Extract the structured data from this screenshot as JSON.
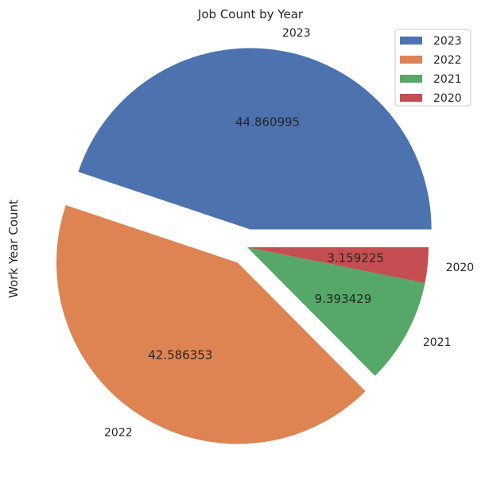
{
  "chart_data": {
    "type": "pie",
    "title": "Job Count by Year",
    "ylabel": "Work Year Count",
    "categories": [
      "2023",
      "2022",
      "2021",
      "2020"
    ],
    "values": [
      44.860995,
      42.586353,
      9.393429,
      3.159225
    ],
    "value_labels": [
      "44.860995",
      "42.586353",
      "9.393429",
      "3.159225"
    ],
    "explode": [
      0.1,
      0.1,
      0.0,
      0.0
    ],
    "colors": [
      "#4c72b0",
      "#dd8452",
      "#55a868",
      "#c44e52"
    ],
    "legend": {
      "placement": "top-right",
      "entries": [
        "2023",
        "2022",
        "2021",
        "2020"
      ]
    }
  }
}
